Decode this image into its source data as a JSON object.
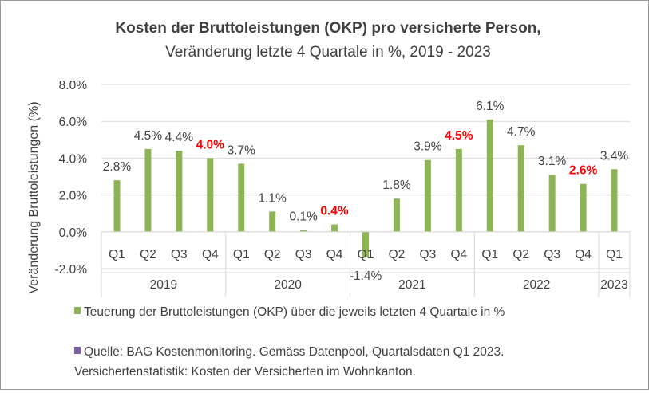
{
  "chart_data": {
    "type": "bar",
    "title": "Kosten der Bruttoleistungen (OKP) pro versicherte Person,",
    "subtitle": "Veränderung letzte 4 Quartale in %, 2019 - 2023",
    "ylabel": "Veränderung Bruttoleistungen (%)",
    "xlabel": "",
    "ylim": [
      -2,
      8
    ],
    "yticks": [
      -2,
      0,
      2,
      4,
      6,
      8
    ],
    "ytick_labels": [
      "-2.0%",
      "0.0%",
      "2.0%",
      "4.0%",
      "6.0%",
      "8.0%"
    ],
    "grid": true,
    "legend_position": "bottom",
    "bar_color": "#8db555",
    "highlight_color": "#ff0000",
    "categories": [
      "Q1",
      "Q2",
      "Q3",
      "Q4",
      "Q1",
      "Q2",
      "Q3",
      "Q4",
      "Q1",
      "Q2",
      "Q3",
      "Q4",
      "Q1",
      "Q2",
      "Q3",
      "Q4",
      "Q1"
    ],
    "years": [
      {
        "label": "2019",
        "count": 4
      },
      {
        "label": "2020",
        "count": 4
      },
      {
        "label": "2021",
        "count": 4
      },
      {
        "label": "2022",
        "count": 4
      },
      {
        "label": "2023",
        "count": 1
      }
    ],
    "series": [
      {
        "name": "Teuerung der Bruttoleistungen (OKP) über die jeweils letzten 4 Quartale in %",
        "values": [
          2.8,
          4.5,
          4.4,
          4.0,
          3.7,
          1.1,
          0.1,
          0.4,
          -1.4,
          1.8,
          3.9,
          4.5,
          6.1,
          4.7,
          3.1,
          2.6,
          3.4
        ],
        "labels": [
          "2.8%",
          "4.5%",
          "4.4%",
          "4.0%",
          "3.7%",
          "1.1%",
          "0.1%",
          "0.4%",
          "-1.4%",
          "1.8%",
          "3.9%",
          "4.5%",
          "6.1%",
          "4.7%",
          "3.1%",
          "2.6%",
          "3.4%"
        ],
        "highlighted": [
          false,
          false,
          false,
          true,
          false,
          false,
          false,
          true,
          false,
          false,
          false,
          true,
          false,
          false,
          false,
          true,
          false
        ]
      }
    ],
    "source_note": {
      "color": "#7b5ea7",
      "line1": "Quelle: BAG Kostenmonitoring. Gemäss Datenpool, Quartalsdaten Q1 2023.",
      "line2": "Versichertenstatistik: Kosten der Versicherten im Wohnkanton."
    }
  }
}
